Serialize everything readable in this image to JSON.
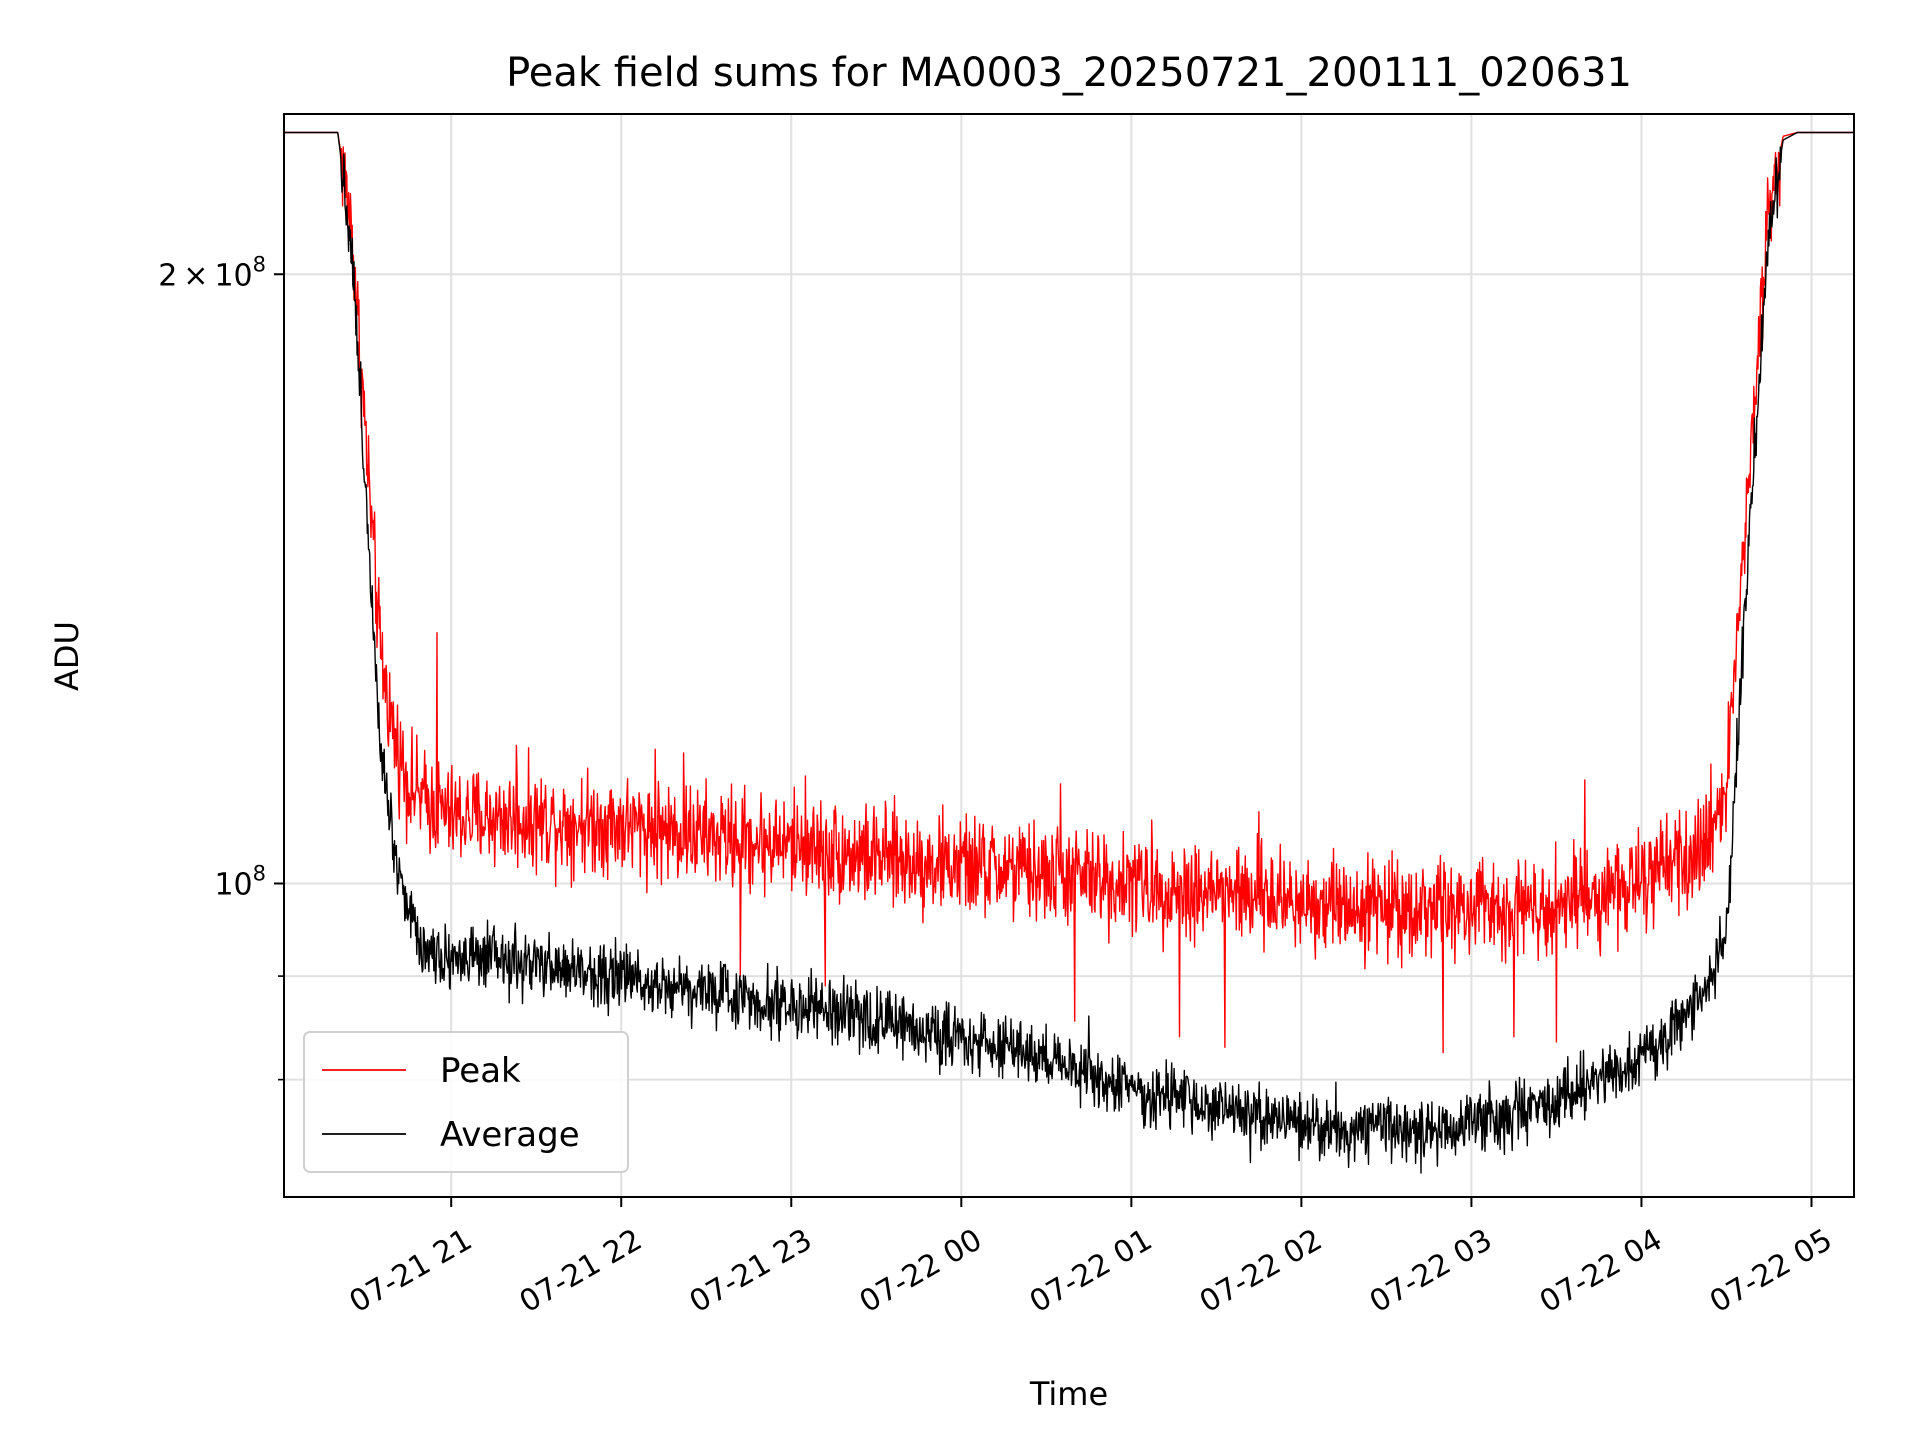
{
  "chart_data": {
    "type": "line",
    "title": "Peak field sums for MA0003_20250721_200111_020631",
    "xlabel": "Time",
    "ylabel": "ADU",
    "y_scale": "log",
    "ylim": [
      70000000,
      240000000
    ],
    "xlim": [
      "2025-07-21 20:01",
      "2025-07-22 05:15"
    ],
    "x_ticks": [
      {
        "value": "2025-07-21 21:00",
        "label": "07-21 21"
      },
      {
        "value": "2025-07-21 22:00",
        "label": "07-21 22"
      },
      {
        "value": "2025-07-21 23:00",
        "label": "07-21 23"
      },
      {
        "value": "2025-07-22 00:00",
        "label": "07-22 00"
      },
      {
        "value": "2025-07-22 01:00",
        "label": "07-22 01"
      },
      {
        "value": "2025-07-22 02:00",
        "label": "07-22 02"
      },
      {
        "value": "2025-07-22 03:00",
        "label": "07-22 03"
      },
      {
        "value": "2025-07-22 04:00",
        "label": "07-22 04"
      },
      {
        "value": "2025-07-22 05:00",
        "label": "07-22 05"
      }
    ],
    "y_ticks": [
      {
        "value": 200000000,
        "mantissa": "2",
        "times": "×",
        "base": "10",
        "exp": "8"
      },
      {
        "value": 100000000,
        "mantissa": "",
        "times": "",
        "base": "10",
        "exp": "8"
      }
    ],
    "y_minor_ticks": [
      80000000,
      90000000
    ],
    "grid": true,
    "legend": {
      "placement": "lower-left",
      "entries": [
        "Peak",
        "Average"
      ]
    },
    "series": [
      {
        "name": "Peak",
        "color": "#ff0000",
        "x": [
          "2025-07-21 20:01",
          "2025-07-21 20:20",
          "2025-07-21 20:25",
          "2025-07-21 20:30",
          "2025-07-21 20:35",
          "2025-07-21 20:40",
          "2025-07-21 20:45",
          "2025-07-21 20:50",
          "2025-07-21 21:00",
          "2025-07-21 21:30",
          "2025-07-21 22:00",
          "2025-07-21 22:30",
          "2025-07-21 23:00",
          "2025-07-21 23:30",
          "2025-07-22 00:00",
          "2025-07-22 00:30",
          "2025-07-22 01:00",
          "2025-07-22 01:30",
          "2025-07-22 02:00",
          "2025-07-22 02:30",
          "2025-07-22 03:00",
          "2025-07-22 03:30",
          "2025-07-22 04:00",
          "2025-07-22 04:20",
          "2025-07-22 04:30",
          "2025-07-22 04:35",
          "2025-07-22 04:40",
          "2025-07-22 04:45",
          "2025-07-22 04:50",
          "2025-07-22 04:55",
          "2025-07-22 05:15"
        ],
        "y": [
          235000000,
          235000000,
          210000000,
          165000000,
          130000000,
          118000000,
          112000000,
          110000000,
          108000000,
          107500000,
          107000000,
          105500000,
          104500000,
          103000000,
          102000000,
          101000000,
          100000000,
          99000000,
          98000000,
          97500000,
          97000000,
          98000000,
          100000000,
          103000000,
          112000000,
          140000000,
          175000000,
          215000000,
          234000000,
          235000000,
          235000000
        ],
        "noise": 0.028,
        "spikes": [
          {
            "x": "2025-07-21 20:55",
            "y": 133000000
          },
          {
            "x": "2025-07-21 21:23",
            "y": 117000000
          },
          {
            "x": "2025-07-21 22:12",
            "y": 116500000
          },
          {
            "x": "2025-07-21 22:22",
            "y": 116000000
          },
          {
            "x": "2025-07-21 23:05",
            "y": 113000000
          },
          {
            "x": "2025-07-22 00:35",
            "y": 112000000
          },
          {
            "x": "2025-07-22 01:45",
            "y": 108500000
          },
          {
            "x": "2025-07-22 03:40",
            "y": 112500000
          },
          {
            "x": "2025-07-21 22:42",
            "y": 90000000
          },
          {
            "x": "2025-07-21 23:12",
            "y": 89000000
          },
          {
            "x": "2025-07-22 00:40",
            "y": 85500000
          },
          {
            "x": "2025-07-22 01:17",
            "y": 84000000
          },
          {
            "x": "2025-07-22 01:33",
            "y": 83000000
          },
          {
            "x": "2025-07-22 02:50",
            "y": 82500000
          },
          {
            "x": "2025-07-22 03:15",
            "y": 84000000
          },
          {
            "x": "2025-07-22 03:30",
            "y": 83500000
          }
        ]
      },
      {
        "name": "Average",
        "color": "#000000",
        "x": [
          "2025-07-21 20:01",
          "2025-07-21 20:20",
          "2025-07-21 20:25",
          "2025-07-21 20:30",
          "2025-07-21 20:35",
          "2025-07-21 20:40",
          "2025-07-21 20:45",
          "2025-07-21 20:50",
          "2025-07-21 21:00",
          "2025-07-21 21:30",
          "2025-07-21 22:00",
          "2025-07-21 22:30",
          "2025-07-21 23:00",
          "2025-07-21 23:30",
          "2025-07-22 00:00",
          "2025-07-22 00:30",
          "2025-07-22 01:00",
          "2025-07-22 01:30",
          "2025-07-22 02:00",
          "2025-07-22 02:30",
          "2025-07-22 03:00",
          "2025-07-22 03:30",
          "2025-07-22 04:00",
          "2025-07-22 04:20",
          "2025-07-22 04:30",
          "2025-07-22 04:35",
          "2025-07-22 04:40",
          "2025-07-22 04:45",
          "2025-07-22 04:50",
          "2025-07-22 04:55",
          "2025-07-22 05:15"
        ],
        "y": [
          235000000,
          235000000,
          205000000,
          155000000,
          118000000,
          104000000,
          97000000,
          93000000,
          92000000,
          91000000,
          90000000,
          88500000,
          87000000,
          85500000,
          84000000,
          82000000,
          79000000,
          77500000,
          76000000,
          75500000,
          76000000,
          78000000,
          82000000,
          87000000,
          95000000,
          125000000,
          165000000,
          210000000,
          233000000,
          235000000,
          235000000
        ],
        "noise": 0.018,
        "spikes": [
          {
            "x": "2025-07-21 21:15",
            "y": 95000000
          },
          {
            "x": "2025-07-21 22:55",
            "y": 91000000
          },
          {
            "x": "2025-07-22 00:45",
            "y": 86000000
          },
          {
            "x": "2025-07-22 01:42",
            "y": 72800000
          },
          {
            "x": "2025-07-22 02:48",
            "y": 72500000
          }
        ]
      }
    ]
  }
}
